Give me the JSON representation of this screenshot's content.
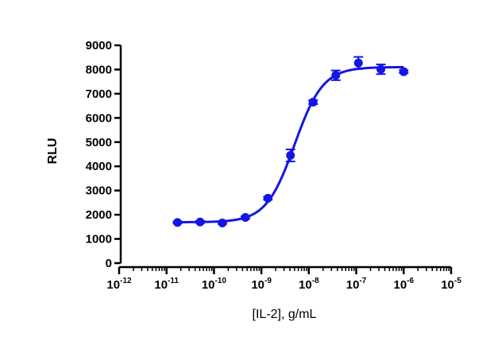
{
  "chart_data": {
    "type": "scatter",
    "title": "",
    "xlabel": "[IL-2], g/mL",
    "ylabel": "RLU",
    "x_scale": "log",
    "x_range": [
      1e-12,
      1e-05
    ],
    "y_range": [
      0,
      9000
    ],
    "y_ticks": [
      0,
      1000,
      2000,
      3000,
      4000,
      5000,
      6000,
      7000,
      8000,
      9000
    ],
    "x_ticks": [
      {
        "base": "10",
        "exp": "-12",
        "value": 1e-12
      },
      {
        "base": "10",
        "exp": "-11",
        "value": 1e-11
      },
      {
        "base": "10",
        "exp": "-10",
        "value": 1e-10
      },
      {
        "base": "10",
        "exp": "-9",
        "value": 1e-09
      },
      {
        "base": "10",
        "exp": "-8",
        "value": 1e-08
      },
      {
        "base": "10",
        "exp": "-7",
        "value": 1e-07
      },
      {
        "base": "10",
        "exp": "-6",
        "value": 1e-06
      },
      {
        "base": "10",
        "exp": "-5",
        "value": 1e-05
      }
    ],
    "grid": false,
    "legend": "none",
    "color": "#1515e6",
    "points": [
      {
        "x": 1.7e-11,
        "y": 1680,
        "err": 40
      },
      {
        "x": 5.1e-11,
        "y": 1700,
        "err": 40
      },
      {
        "x": 1.5e-10,
        "y": 1660,
        "err": 40
      },
      {
        "x": 4.6e-10,
        "y": 1890,
        "err": 50
      },
      {
        "x": 1.37e-09,
        "y": 2680,
        "err": 60
      },
      {
        "x": 4.1e-09,
        "y": 4450,
        "err": 250
      },
      {
        "x": 1.23e-08,
        "y": 6650,
        "err": 80
      },
      {
        "x": 3.7e-08,
        "y": 7760,
        "err": 200
      },
      {
        "x": 1.11e-07,
        "y": 8270,
        "err": 250
      },
      {
        "x": 3.3e-07,
        "y": 8010,
        "err": 200
      },
      {
        "x": 1e-06,
        "y": 7910,
        "err": 60
      }
    ],
    "fit": {
      "model": "4PL",
      "bottom": 1690,
      "top": 8100,
      "ec50": 5e-09,
      "hill": 1.45
    }
  }
}
